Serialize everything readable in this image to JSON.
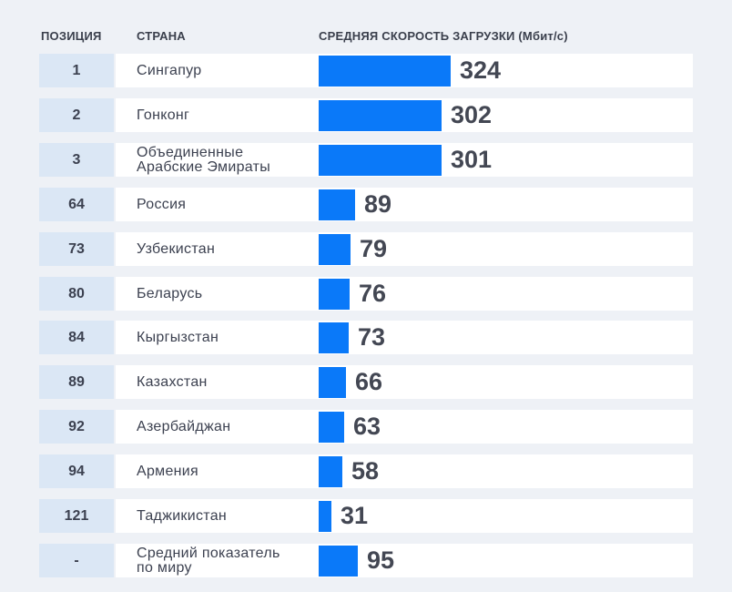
{
  "headers": {
    "position": "ПОЗИЦИЯ",
    "country": "СТРАНА",
    "speed": "СРЕДНЯЯ СКОРОСТЬ ЗАГРУЗКИ (Мбит/с)"
  },
  "colors": {
    "bar": "#0a79f9",
    "position_cell": "#dbe7f5",
    "row_band": "#ffffff",
    "background": "#eef1f6"
  },
  "chart_data": {
    "type": "bar",
    "orientation": "horizontal",
    "title": "",
    "xlabel": "СРЕДНЯЯ СКОРОСТЬ ЗАГРУЗКИ (Мбит/с)",
    "ylabel": "",
    "xlim": [
      0,
      324
    ],
    "grid": false,
    "rows": [
      {
        "position": "1",
        "country": "Сингапур",
        "value": 324
      },
      {
        "position": "2",
        "country": "Гонконг",
        "value": 302
      },
      {
        "position": "3",
        "country": "Объединенные\nАрабские Эмираты",
        "value": 301
      },
      {
        "position": "64",
        "country": "Россия",
        "value": 89
      },
      {
        "position": "73",
        "country": "Узбекистан",
        "value": 79
      },
      {
        "position": "80",
        "country": "Беларусь",
        "value": 76
      },
      {
        "position": "84",
        "country": "Кыргызстан",
        "value": 73
      },
      {
        "position": "89",
        "country": "Казахстан",
        "value": 66
      },
      {
        "position": "92",
        "country": "Азербайджан",
        "value": 63
      },
      {
        "position": "94",
        "country": "Армения",
        "value": 58
      },
      {
        "position": "121",
        "country": "Таджикистан",
        "value": 31
      },
      {
        "position": "-",
        "country": "Средний показатель\nпо миру",
        "value": 95
      }
    ]
  }
}
